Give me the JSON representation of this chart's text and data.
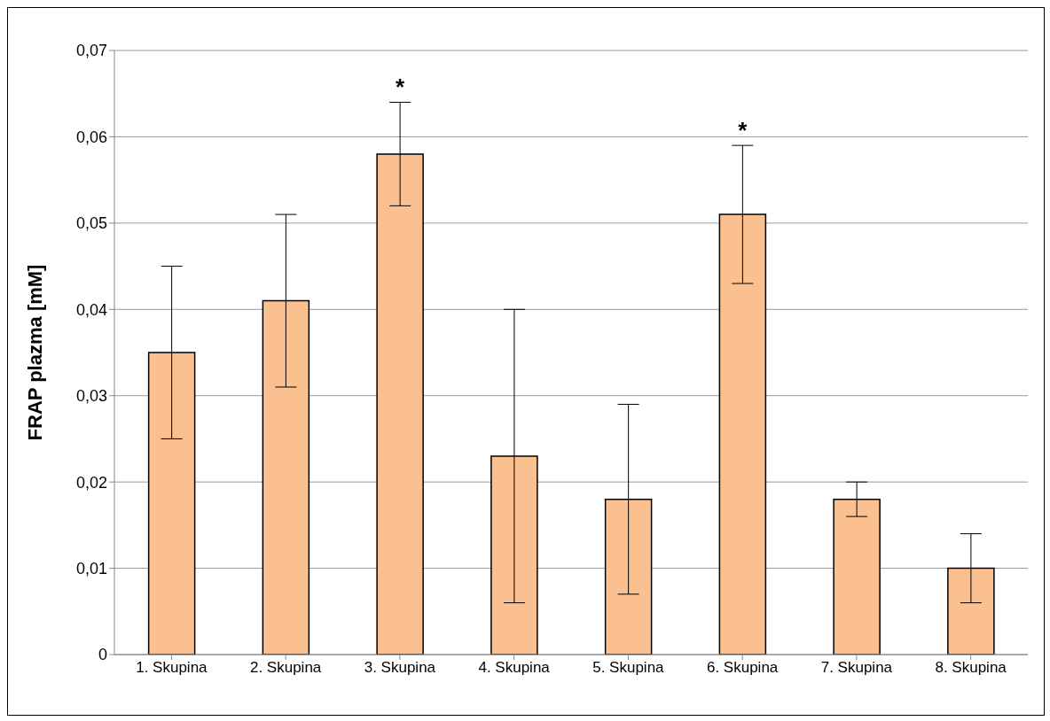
{
  "chart_data": {
    "type": "bar",
    "ylabel": "FRAP plazma [mM]",
    "categories": [
      "1. Skupina",
      "2. Skupina",
      "3. Skupina",
      "4. Skupina",
      "5. Skupina",
      "6. Skupina",
      "7. Skupina",
      "8. Skupina"
    ],
    "values": [
      0.035,
      0.041,
      0.058,
      0.023,
      0.018,
      0.051,
      0.018,
      0.01
    ],
    "errors": [
      [
        0.025,
        0.045
      ],
      [
        0.031,
        0.051
      ],
      [
        0.052,
        0.064
      ],
      [
        0.006,
        0.04
      ],
      [
        0.007,
        0.029
      ],
      [
        0.043,
        0.059
      ],
      [
        0.016,
        0.02
      ],
      [
        0.006,
        0.014
      ]
    ],
    "color": "#fac090",
    "ylim": [
      0,
      0.07
    ],
    "yticks": [
      {
        "value": 0,
        "label": "0"
      },
      {
        "value": 0.01,
        "label": "0,01"
      },
      {
        "value": 0.02,
        "label": "0,02"
      },
      {
        "value": 0.03,
        "label": "0,03"
      },
      {
        "value": 0.04,
        "label": "0,04"
      },
      {
        "value": 0.05,
        "label": "0,05"
      },
      {
        "value": 0.06,
        "label": "0,06"
      },
      {
        "value": 0.07,
        "label": "0,07"
      }
    ],
    "grid": "y",
    "value_labels": [
      null,
      null,
      "*",
      null,
      null,
      "*",
      null,
      null
    ]
  }
}
